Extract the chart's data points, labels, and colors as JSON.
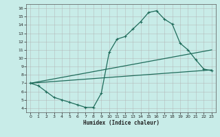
{
  "xlabel": "Humidex (Indice chaleur)",
  "bg_color": "#c8ece8",
  "grid_color": "#b0b0b0",
  "line_color": "#1e6b5a",
  "xlim": [
    -0.5,
    23.5
  ],
  "ylim": [
    3.5,
    16.5
  ],
  "xticks": [
    0,
    1,
    2,
    3,
    4,
    5,
    6,
    7,
    8,
    9,
    10,
    11,
    12,
    13,
    14,
    15,
    16,
    17,
    18,
    19,
    20,
    21,
    22,
    23
  ],
  "yticks": [
    4,
    5,
    6,
    7,
    8,
    9,
    10,
    11,
    12,
    13,
    14,
    15,
    16
  ],
  "line1_x": [
    0,
    1,
    2,
    3,
    4,
    5,
    6,
    7,
    8,
    9,
    10,
    11,
    12,
    13,
    14,
    15,
    16,
    17,
    18,
    19,
    20,
    21,
    22,
    23
  ],
  "line1_y": [
    7.0,
    6.7,
    6.0,
    5.3,
    5.0,
    4.7,
    4.4,
    4.1,
    4.1,
    5.8,
    10.7,
    12.3,
    12.6,
    13.5,
    14.4,
    15.5,
    15.7,
    14.7,
    14.1,
    11.8,
    11.0,
    9.8,
    8.7,
    8.5
  ],
  "line2_x": [
    0,
    23
  ],
  "line2_y": [
    7.0,
    8.6
  ],
  "line3_x": [
    0,
    23
  ],
  "line3_y": [
    7.0,
    11.0
  ]
}
